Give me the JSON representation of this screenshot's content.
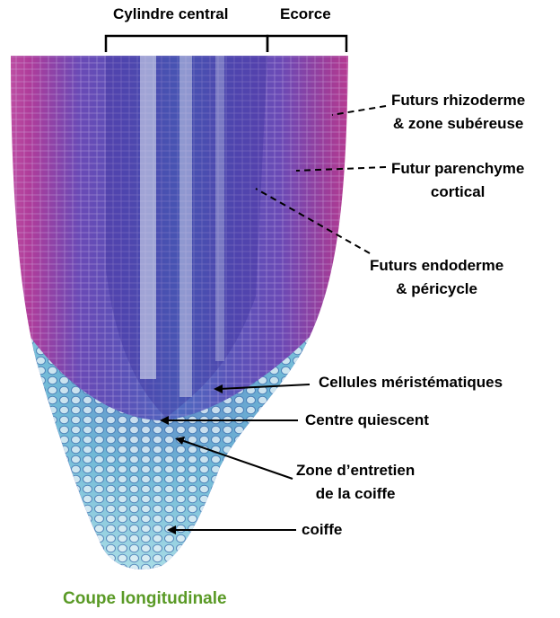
{
  "headers": {
    "cylinder": "Cylindre central",
    "cortex": "Ecorce"
  },
  "labels": {
    "rhizoderm_line1": "Futurs rhizoderme",
    "rhizoderm_line2": "& zone subéreuse",
    "parenchyma_line1": "Futur parenchyme",
    "parenchyma_line2": "cortical",
    "endoderm_line1": "Futurs endoderme",
    "endoderm_line2": "&  péricycle",
    "meristematic": "Cellules méristématiques",
    "quiescent": "Centre quiescent",
    "maintenance_line1": "Zone d’entretien",
    "maintenance_line2": "de la coiffe",
    "cap": "coiffe"
  },
  "caption": "Coupe longitudinale",
  "colors": {
    "caption": "#5a9a26",
    "tissue_purple": "#6a3fb0",
    "tissue_magenta": "#c0349a",
    "tissue_cyan": "#6fc9d9"
  }
}
